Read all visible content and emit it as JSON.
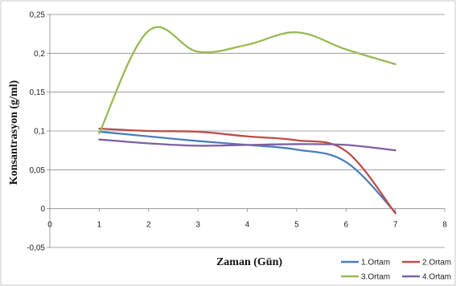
{
  "chart_data": {
    "type": "line",
    "xlabel": "Zaman (Gün)",
    "ylabel": "Konsantrasyon (g/ml)",
    "xlim": [
      0,
      8
    ],
    "ylim": [
      -0.05,
      0.25
    ],
    "x_ticks": [
      "0",
      "1",
      "2",
      "3",
      "4",
      "5",
      "6",
      "7",
      "8"
    ],
    "y_ticks": [
      "0,25",
      "0,2",
      "0,15",
      "0,1",
      "0,05",
      "0",
      "-0,05"
    ],
    "y_tick_values": [
      0.25,
      0.2,
      0.15,
      0.1,
      0.05,
      0,
      -0.05
    ],
    "grid": "horizontal",
    "legend_position": "bottom-right",
    "x": [
      1,
      2,
      3,
      4,
      5,
      6,
      7
    ],
    "series": [
      {
        "name": "1.Ortam",
        "color": "#4a7ebb",
        "values": [
          0.099,
          0.093,
          0.087,
          0.082,
          0.076,
          0.06,
          -0.005
        ]
      },
      {
        "name": "2.Ortam",
        "color": "#be4b48",
        "values": [
          0.103,
          0.1,
          0.099,
          0.093,
          0.088,
          0.074,
          -0.006
        ]
      },
      {
        "name": "3.Ortam",
        "color": "#98b954",
        "values": [
          0.097,
          0.229,
          0.202,
          0.211,
          0.227,
          0.205,
          0.186
        ]
      },
      {
        "name": "4.Ortam",
        "color": "#7d60a0",
        "values": [
          0.089,
          0.084,
          0.081,
          0.082,
          0.083,
          0.082,
          0.075
        ]
      }
    ]
  }
}
